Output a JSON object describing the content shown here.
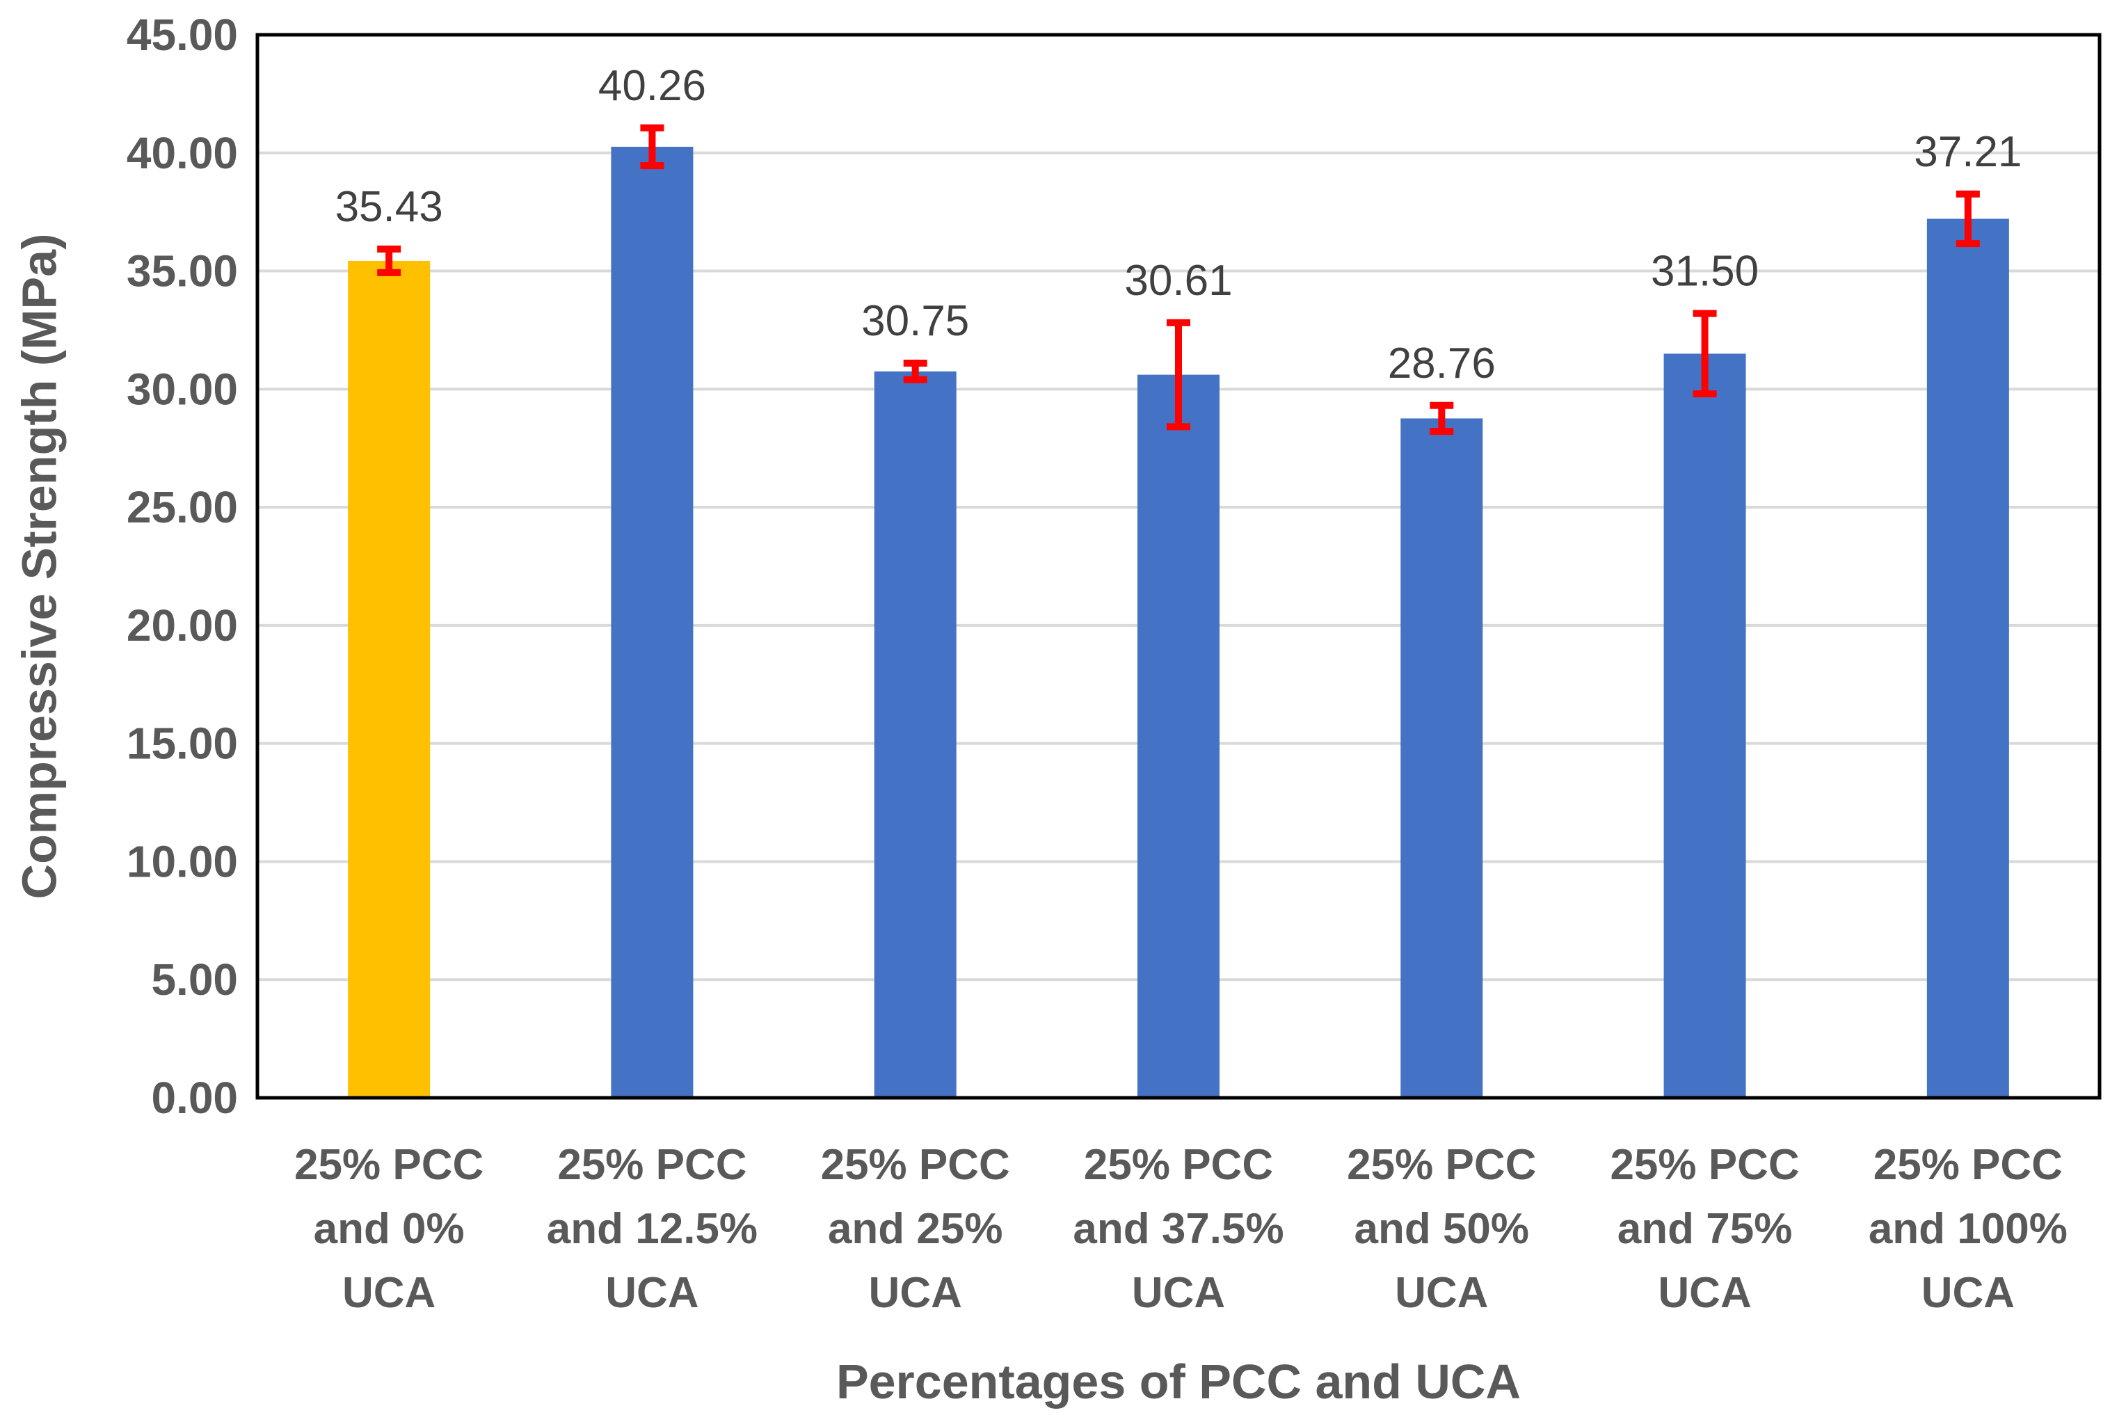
{
  "chart_data": {
    "type": "bar",
    "title": "",
    "xlabel": "Percentages of PCC and UCA",
    "ylabel": "Compressive Strength (MPa)",
    "ylim": [
      0,
      45
    ],
    "ytick_step": 5,
    "ytick_labels": [
      "0.00",
      "5.00",
      "10.00",
      "15.00",
      "20.00",
      "25.00",
      "30.00",
      "35.00",
      "40.00",
      "45.00"
    ],
    "grid": true,
    "legend": "none",
    "categories": [
      [
        "25% PCC",
        "and 0%",
        "UCA"
      ],
      [
        "25% PCC",
        "and 12.5%",
        "UCA"
      ],
      [
        "25% PCC",
        "and 25%",
        "UCA"
      ],
      [
        "25% PCC",
        "and 37.5%",
        "UCA"
      ],
      [
        "25% PCC",
        "and 50%",
        "UCA"
      ],
      [
        "25% PCC",
        "and 75%",
        "UCA"
      ],
      [
        "25% PCC",
        "and 100%",
        "UCA"
      ]
    ],
    "values": [
      35.43,
      40.26,
      30.75,
      30.61,
      28.76,
      31.5,
      37.21
    ],
    "value_labels": [
      "35.43",
      "40.26",
      "30.75",
      "30.61",
      "28.76",
      "31.50",
      "37.21"
    ],
    "error": [
      0.5,
      0.8,
      0.35,
      2.2,
      0.55,
      1.7,
      1.05
    ],
    "bar_colors": [
      "#FFC000",
      "#4472C4",
      "#4472C4",
      "#4472C4",
      "#4472C4",
      "#4472C4",
      "#4472C4"
    ],
    "error_color": "#FF0000",
    "grid_color": "#D9D9D9",
    "axis_color": "#000000"
  }
}
